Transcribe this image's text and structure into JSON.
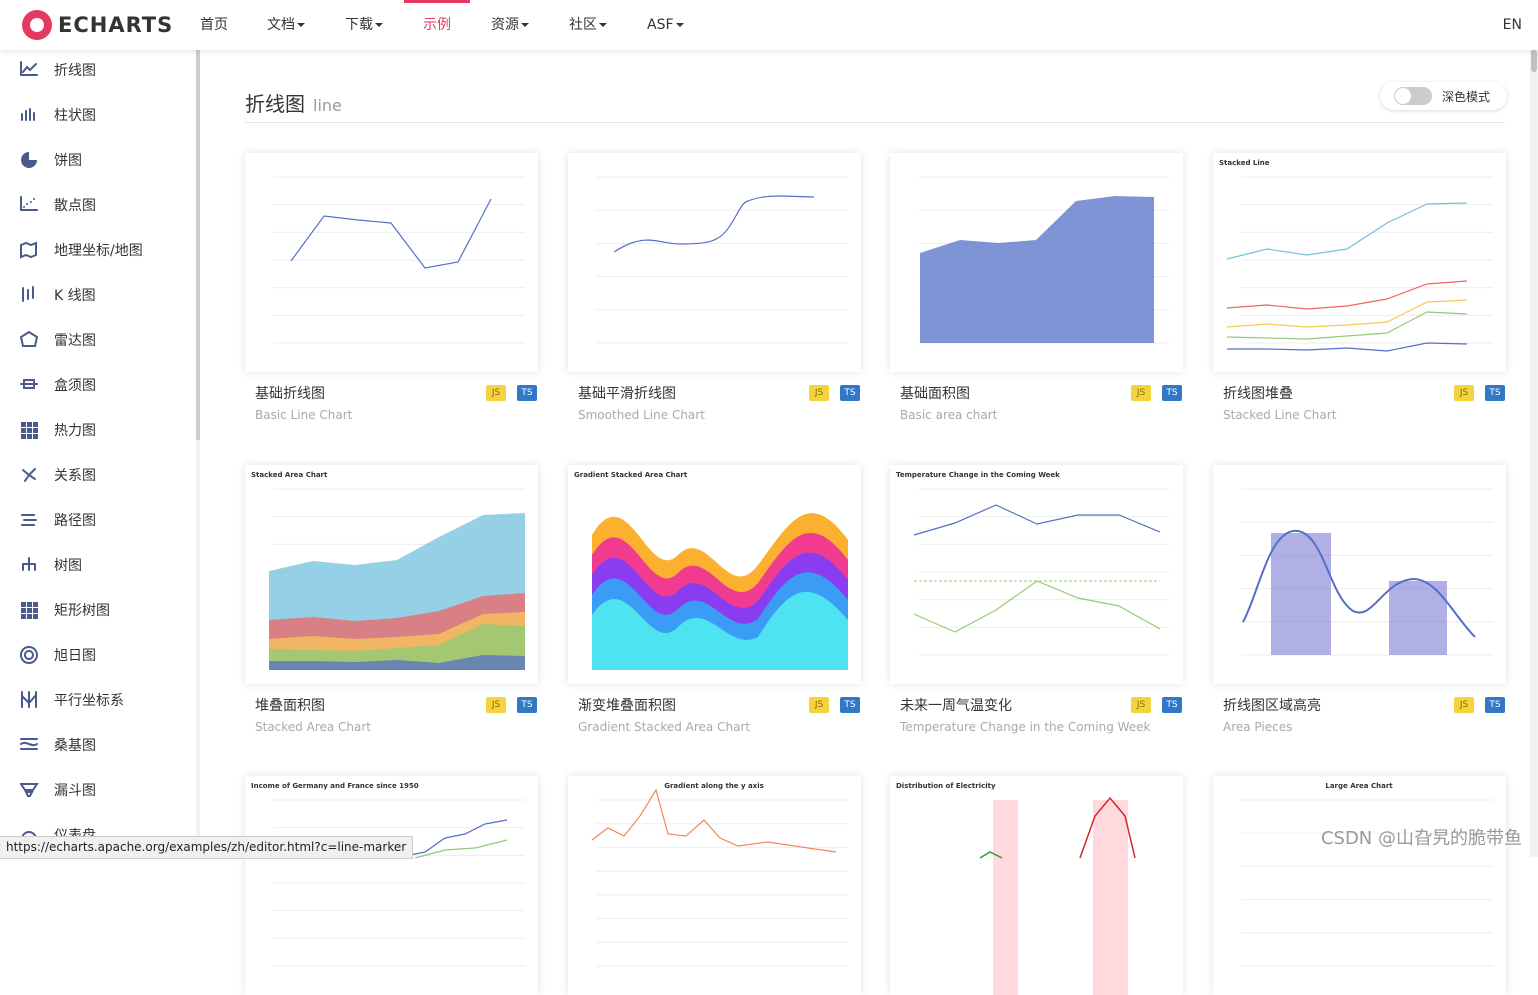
{
  "header": {
    "logo": "ECHARTS",
    "nav": [
      {
        "label": "首页",
        "dropdown": false
      },
      {
        "label": "文档",
        "dropdown": true
      },
      {
        "label": "下载",
        "dropdown": true
      },
      {
        "label": "示例",
        "dropdown": false,
        "active": true
      },
      {
        "label": "资源",
        "dropdown": true
      },
      {
        "label": "社区",
        "dropdown": true
      },
      {
        "label": "ASF",
        "dropdown": true
      }
    ],
    "lang": "EN"
  },
  "sidebar": [
    "折线图",
    "柱状图",
    "饼图",
    "散点图",
    "地理坐标/地图",
    "K 线图",
    "雷达图",
    "盒须图",
    "热力图",
    "关系图",
    "路径图",
    "树图",
    "矩形树图",
    "旭日图",
    "平行坐标系",
    "桑基图",
    "漏斗图",
    "仪表盘"
  ],
  "section": {
    "title": "折线图",
    "subtitle": "line",
    "dark_mode": "深色模式"
  },
  "badges": [
    "JS",
    "TS"
  ],
  "cards": [
    {
      "title": "基础折线图",
      "subtitle": "Basic Line Chart"
    },
    {
      "title": "基础平滑折线图",
      "subtitle": "Smoothed Line Chart"
    },
    {
      "title": "基础面积图",
      "subtitle": "Basic area chart"
    },
    {
      "title": "折线图堆叠",
      "subtitle": "Stacked Line Chart",
      "thumb_title": "Stacked Line"
    },
    {
      "title": "堆叠面积图",
      "subtitle": "Stacked Area Chart",
      "thumb_title": "Stacked Area Chart"
    },
    {
      "title": "渐变堆叠面积图",
      "subtitle": "Gradient Stacked Area Chart",
      "thumb_title": "Gradient Stacked Area Chart"
    },
    {
      "title": "未来一周气温变化",
      "subtitle": "Temperature Change in the Coming Week",
      "thumb_title": "Temperature Change in the Coming Week"
    },
    {
      "title": "折线图区域高亮",
      "subtitle": "Area Pieces"
    },
    {
      "thumb_title": "Income of Germany and France since 1950"
    },
    {
      "thumb_title": "Gradient along the y axis"
    },
    {
      "thumb_title": "Distribution of Electricity"
    },
    {
      "thumb_title": "Large Area Chart"
    }
  ],
  "status_url": "https://echarts.apache.org/examples/zh/editor.html?c=line-marker",
  "watermark": "CSDN @山旮旯的脆带鱼"
}
